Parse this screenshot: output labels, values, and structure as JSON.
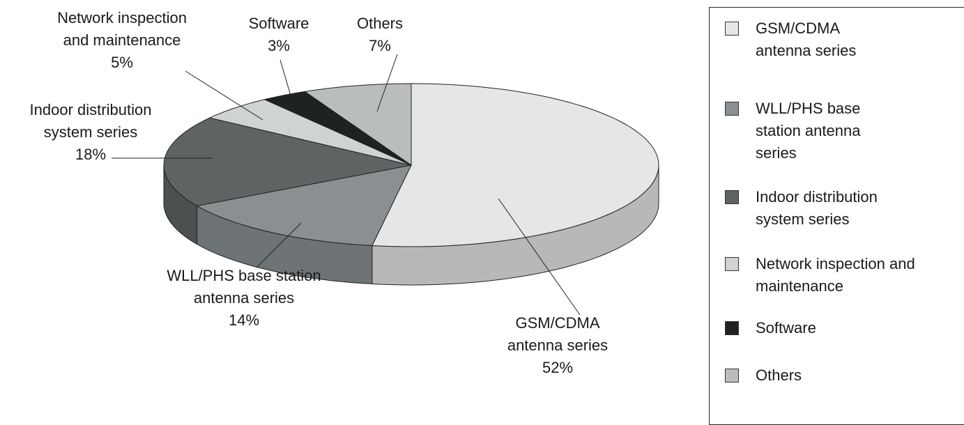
{
  "chart_data": {
    "type": "pie3d",
    "categories": [
      "GSM/CDMA antenna series",
      "WLL/PHS base station antenna series",
      "Indoor distribution system series",
      "Network inspection and maintenance",
      "Software",
      "Others"
    ],
    "values": [
      52,
      14,
      18,
      5,
      3,
      7
    ],
    "value_labels": [
      "52%",
      "14%",
      "18%",
      "5%",
      "3%",
      "7%"
    ],
    "colors": [
      "#e6e6e8",
      "#8a9092",
      "#5e6464",
      "#cfd3d3",
      "#1e2220",
      "#b9bebd"
    ],
    "legend": "right"
  }
}
